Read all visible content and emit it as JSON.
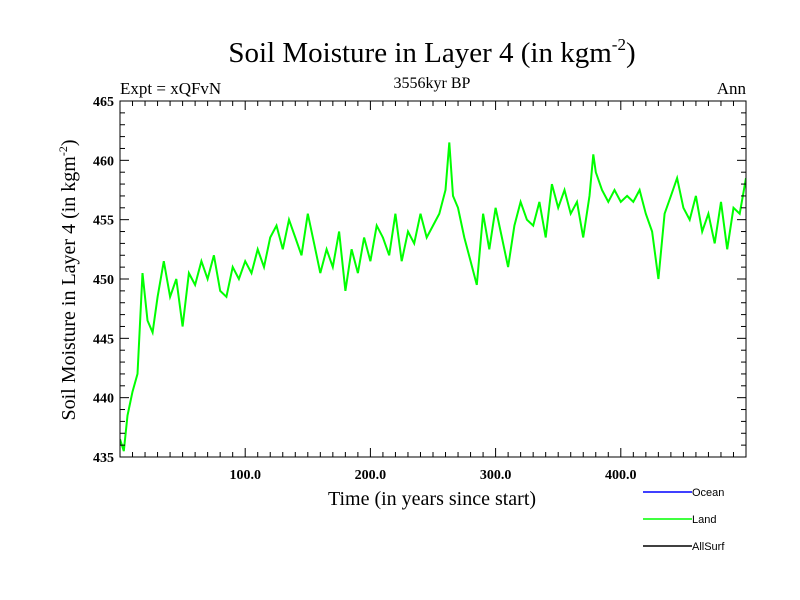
{
  "chart_data": {
    "type": "line",
    "title": "Soil Moisture in Layer 4 (in kgm",
    "title_sup": "-2",
    "title_close": ")",
    "subtitle_left": "Expt = xQFvN",
    "subtitle_center": "3556kyr BP",
    "subtitle_right": "Ann",
    "xlabel": "Time (in years since start)",
    "ylabel": "Soil Moisture in Layer 4 (in kgm",
    "ylabel_sup": "-2",
    "ylabel_close": ")",
    "xlim": [
      0,
      500
    ],
    "ylim": [
      435,
      465
    ],
    "xticks": [
      100,
      200,
      300,
      400
    ],
    "xtick_labels": [
      "100.0",
      "200.0",
      "300.0",
      "400.0"
    ],
    "yticks": [
      435,
      440,
      445,
      450,
      455,
      460,
      465
    ],
    "ytick_labels": [
      "435",
      "440",
      "445",
      "450",
      "455",
      "460",
      "465"
    ],
    "series": [
      {
        "name": "Land",
        "color": "#00ff00",
        "x": [
          0,
          3,
          6,
          10,
          14,
          18,
          22,
          26,
          30,
          35,
          40,
          45,
          50,
          55,
          60,
          65,
          70,
          75,
          80,
          85,
          90,
          95,
          100,
          105,
          110,
          115,
          120,
          125,
          130,
          135,
          140,
          145,
          150,
          155,
          160,
          165,
          170,
          175,
          180,
          185,
          190,
          195,
          200,
          205,
          210,
          215,
          220,
          225,
          230,
          235,
          240,
          245,
          250,
          255,
          260,
          263,
          266,
          270,
          275,
          280,
          285,
          290,
          295,
          300,
          305,
          310,
          315,
          320,
          325,
          330,
          335,
          340,
          345,
          350,
          355,
          360,
          365,
          370,
          375,
          378,
          380,
          385,
          390,
          395,
          400,
          405,
          410,
          415,
          420,
          425,
          430,
          435,
          440,
          445,
          450,
          455,
          460,
          465,
          470,
          475,
          480,
          485,
          490,
          495,
          500
        ],
        "values": [
          436.5,
          435.5,
          438.5,
          440.5,
          442,
          450.5,
          446.5,
          445.5,
          448.5,
          451.5,
          448.5,
          450,
          446,
          450.5,
          449.5,
          451.5,
          450,
          452,
          449,
          448.5,
          451,
          450,
          451.5,
          450.5,
          452.5,
          451,
          453.5,
          454.5,
          452.5,
          455,
          453.5,
          452,
          455.5,
          453,
          450.5,
          452.5,
          451,
          454,
          449,
          452.5,
          450.5,
          453.5,
          451.5,
          454.5,
          453.5,
          452,
          455.5,
          451.5,
          454,
          453,
          455.5,
          453.5,
          454.5,
          455.5,
          457.5,
          461.5,
          457,
          456,
          453.5,
          451.5,
          449.5,
          455.5,
          452.5,
          456,
          453.5,
          451,
          454.5,
          456.5,
          455,
          454.5,
          456.5,
          453.5,
          458,
          456,
          457.5,
          455.5,
          456.5,
          453.5,
          457,
          460.5,
          459,
          457.5,
          456.5,
          457.5,
          456.5,
          457,
          456.5,
          457.5,
          455.5,
          454,
          450,
          455.5,
          457,
          458.5,
          456,
          455,
          457,
          454,
          455.5,
          453,
          456.5,
          452.5,
          456,
          455.5,
          458.5
        ]
      }
    ],
    "legend": [
      {
        "name": "Ocean",
        "color": "#0000ff"
      },
      {
        "name": "Land",
        "color": "#00ff00"
      },
      {
        "name": "AllSurf",
        "color": "#000000"
      }
    ],
    "legend_position": "bottom-right"
  }
}
